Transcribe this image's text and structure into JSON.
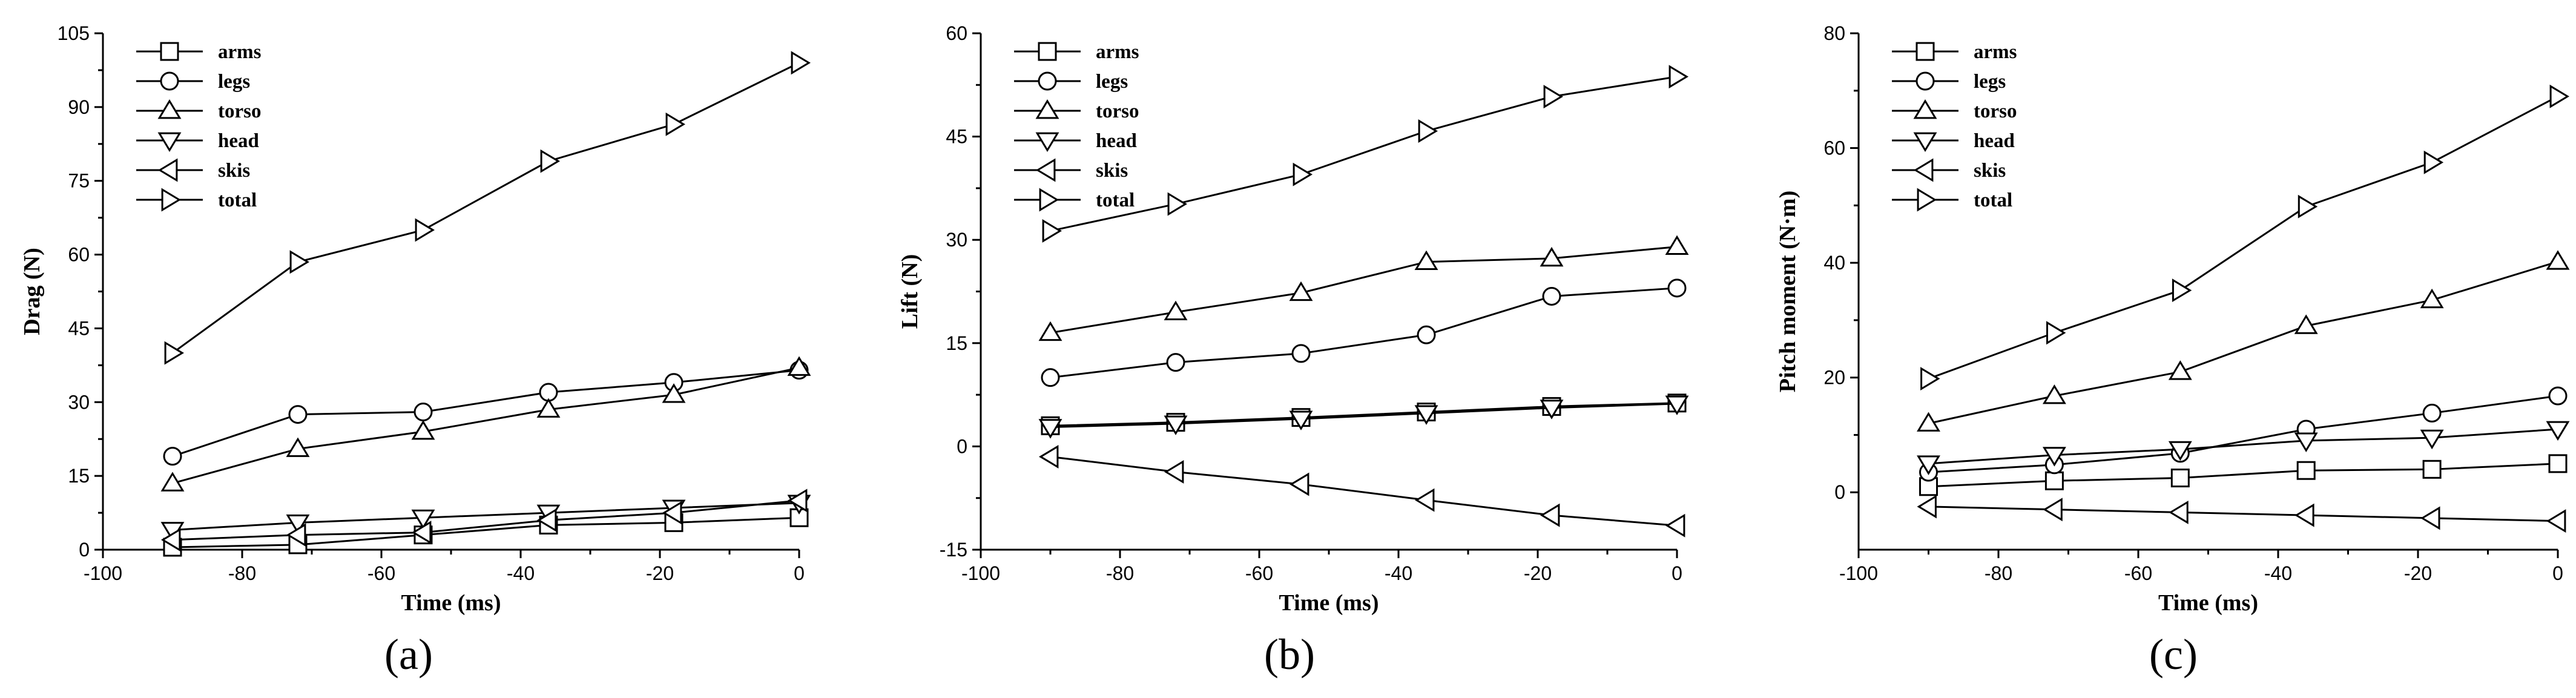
{
  "chart_data": [
    {
      "type": "line",
      "panel_label": "(a)",
      "panel_letter": "a",
      "xlabel": "Time (ms)",
      "ylabel": "Drag (N)",
      "xlim": [
        -100,
        0
      ],
      "ylim": [
        0,
        105
      ],
      "xticks": [
        -100,
        -80,
        -60,
        -40,
        -20,
        0
      ],
      "yticks": [
        0,
        15,
        30,
        45,
        60,
        75,
        90,
        105
      ],
      "x": [
        -90,
        -72,
        -54,
        -36,
        -18,
        0
      ],
      "legend_position": "top-left",
      "series": [
        {
          "name": "arms",
          "marker": "square",
          "values": [
            0.5,
            1,
            3,
            5,
            5.5,
            6.5
          ]
        },
        {
          "name": "legs",
          "marker": "circle",
          "values": [
            19,
            27.5,
            28,
            32,
            34,
            36.5
          ]
        },
        {
          "name": "torso",
          "marker": "triangle-up",
          "values": [
            13.5,
            20.5,
            24,
            28.5,
            31.5,
            37
          ]
        },
        {
          "name": "head",
          "marker": "triangle-down",
          "values": [
            4,
            5.5,
            6.5,
            7.5,
            8.5,
            9.5
          ]
        },
        {
          "name": "skis",
          "marker": "triangle-left",
          "values": [
            2,
            3,
            3.5,
            6,
            7.5,
            10
          ]
        },
        {
          "name": "total",
          "marker": "triangle-right",
          "values": [
            40,
            58.5,
            65,
            79,
            86.5,
            99
          ]
        }
      ]
    },
    {
      "type": "line",
      "panel_label": "(b)",
      "panel_letter": "b",
      "xlabel": "Time (ms)",
      "ylabel": "Lift (N)",
      "xlim": [
        -100,
        0
      ],
      "ylim": [
        -15,
        60
      ],
      "xticks": [
        -100,
        -80,
        -60,
        -40,
        -20,
        0
      ],
      "yticks": [
        -15,
        0,
        15,
        30,
        45,
        60
      ],
      "x": [
        -90,
        -72,
        -54,
        -36,
        -18,
        0
      ],
      "legend_position": "top-left",
      "series": [
        {
          "name": "arms",
          "marker": "square",
          "values": [
            3,
            3.5,
            4.2,
            5,
            5.8,
            6.3
          ]
        },
        {
          "name": "legs",
          "marker": "circle",
          "values": [
            10,
            12.2,
            13.5,
            16.2,
            21.8,
            23
          ]
        },
        {
          "name": "torso",
          "marker": "triangle-up",
          "values": [
            16.5,
            19.5,
            22.3,
            26.8,
            27.3,
            29
          ]
        },
        {
          "name": "head",
          "marker": "triangle-down",
          "values": [
            2.8,
            3.3,
            4,
            4.8,
            5.6,
            6.2
          ]
        },
        {
          "name": "skis",
          "marker": "triangle-left",
          "values": [
            -1.5,
            -3.7,
            -5.5,
            -7.8,
            -10,
            -11.5
          ]
        },
        {
          "name": "total",
          "marker": "triangle-right",
          "values": [
            31.3,
            35.2,
            39.5,
            45.8,
            50.8,
            53.7
          ]
        }
      ]
    },
    {
      "type": "line",
      "panel_label": "(c)",
      "panel_letter": "c",
      "xlabel": "Time (ms)",
      "ylabel": "Pitch moment (N·m)",
      "xlim": [
        -100,
        0
      ],
      "ylim": [
        -10,
        80
      ],
      "xticks": [
        -100,
        -80,
        -60,
        -40,
        -20,
        0
      ],
      "yticks": [
        0,
        20,
        40,
        60,
        80
      ],
      "x": [
        -90,
        -72,
        -54,
        -36,
        -18,
        0
      ],
      "legend_position": "top-left",
      "series": [
        {
          "name": "arms",
          "marker": "square",
          "values": [
            1,
            2,
            2.5,
            3.8,
            4,
            5
          ]
        },
        {
          "name": "legs",
          "marker": "circle",
          "values": [
            3.5,
            4.8,
            6.8,
            11,
            13.8,
            16.8
          ]
        },
        {
          "name": "torso",
          "marker": "triangle-up",
          "values": [
            12,
            16.8,
            21,
            29,
            33.5,
            40.2
          ]
        },
        {
          "name": "head",
          "marker": "triangle-down",
          "values": [
            5,
            6.5,
            7.5,
            9,
            9.5,
            11
          ]
        },
        {
          "name": "skis",
          "marker": "triangle-left",
          "values": [
            -2.5,
            -3,
            -3.5,
            -4,
            -4.5,
            -5
          ]
        },
        {
          "name": "total",
          "marker": "triangle-right",
          "values": [
            19.8,
            27.8,
            35.2,
            49.8,
            57.5,
            69
          ]
        }
      ]
    }
  ]
}
